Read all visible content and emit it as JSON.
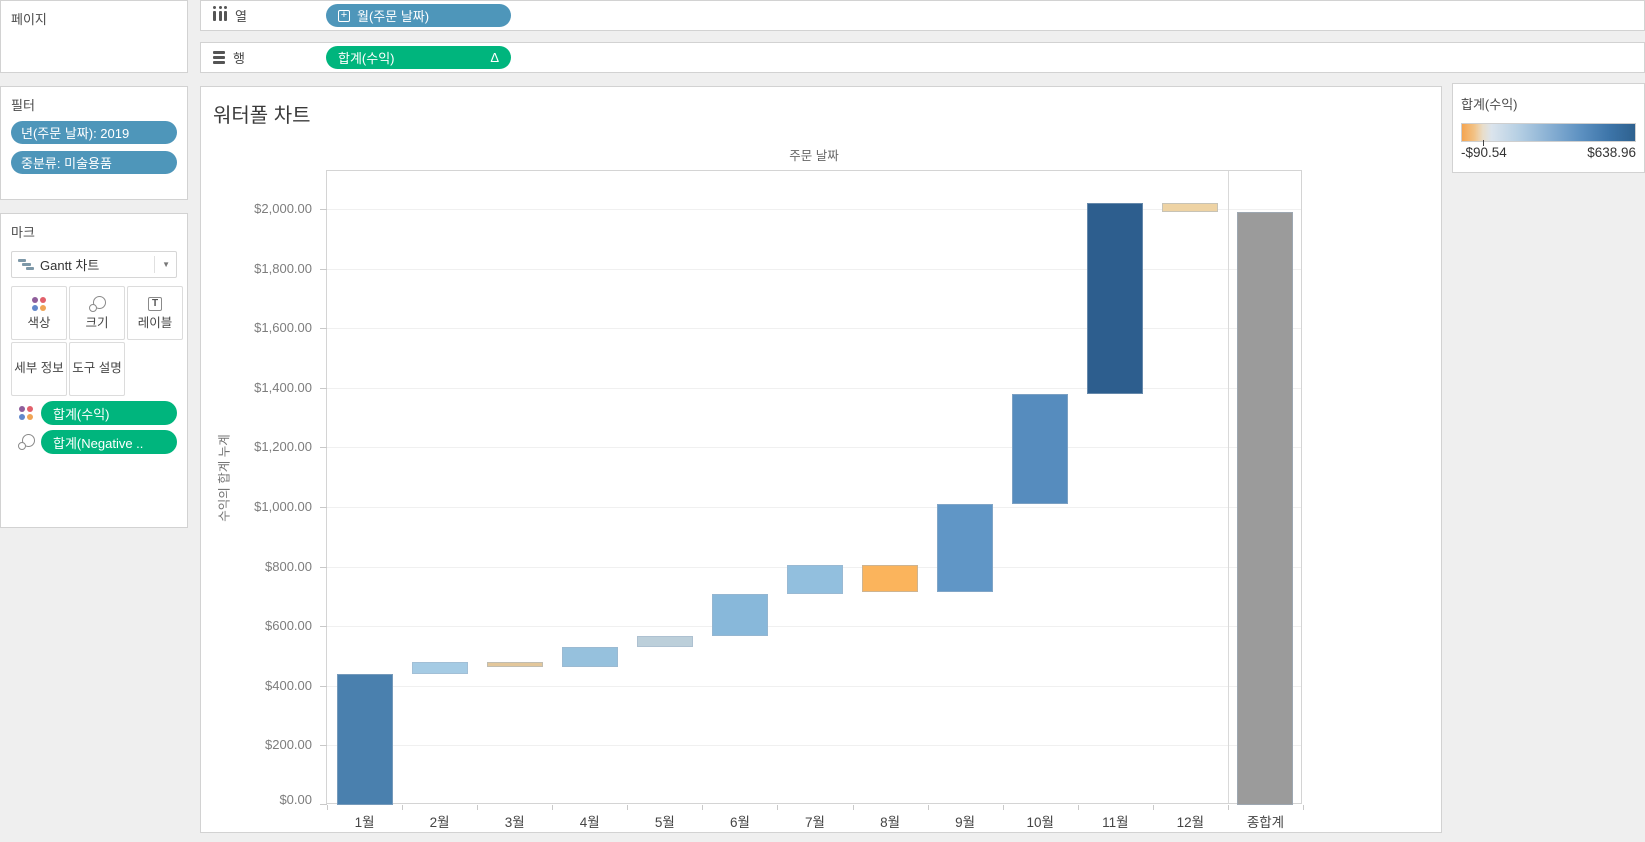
{
  "pages_card": {
    "title": "페이지"
  },
  "filters_card": {
    "title": "필터",
    "pills": [
      "년(주문 날짜): 2019",
      "중분류: 미술용품"
    ]
  },
  "marks_card": {
    "title": "마크",
    "mark_type_selector": "Gantt 차트",
    "buttons": [
      {
        "id": "color",
        "label": "색상"
      },
      {
        "id": "size",
        "label": "크기"
      },
      {
        "id": "label",
        "label": "레이블"
      },
      {
        "id": "detail",
        "label": "세부 정보"
      },
      {
        "id": "tooltip",
        "label": "도구 설명"
      }
    ],
    "pills": [
      {
        "icon": "color-dots-icon",
        "text": "합계(수익)"
      },
      {
        "icon": "size-circles-icon",
        "text": "합계(Negative .."
      }
    ]
  },
  "columns_shelf": {
    "label": "열",
    "pill": {
      "expand_icon": "+",
      "text": "월(주문 날짜)",
      "color": "#4e96ba"
    }
  },
  "rows_shelf": {
    "label": "행",
    "pill": {
      "text": "합계(수익)",
      "table_calc_badge": "Δ",
      "color": "#00b57d"
    }
  },
  "worksheet": {
    "title": "워터폴 차트",
    "column_field_header": "주문 날짜",
    "y_axis_title": "수익의 합계 누계"
  },
  "legend": {
    "title": "합계(수익)",
    "min_label": "-$90.54",
    "max_label": "$638.96",
    "zero_tick_percent": 12.4,
    "gradient_colors": [
      "#f5a44f",
      "#dbe4ed",
      "#2e618f"
    ]
  },
  "chart_data": {
    "type": "bar",
    "subtype": "waterfall-gantt",
    "title": "주문 날짜",
    "ylabel": "수익의 합계 누계",
    "ylim": [
      0,
      2130
    ],
    "grid": true,
    "legend_position": "top-right",
    "y_ticks": [
      {
        "value": 0,
        "label": "$0.00"
      },
      {
        "value": 200,
        "label": "$200.00"
      },
      {
        "value": 400,
        "label": "$400.00"
      },
      {
        "value": 600,
        "label": "$600.00"
      },
      {
        "value": 800,
        "label": "$800.00"
      },
      {
        "value": 1000,
        "label": "$1,000.00"
      },
      {
        "value": 1200,
        "label": "$1,200.00"
      },
      {
        "value": 1400,
        "label": "$1,400.00"
      },
      {
        "value": 1600,
        "label": "$1,600.00"
      },
      {
        "value": 1800,
        "label": "$1,800.00"
      },
      {
        "value": 2000,
        "label": "$2,000.00"
      }
    ],
    "categories": [
      "1월",
      "2월",
      "3월",
      "4월",
      "5월",
      "6월",
      "7월",
      "8월",
      "9월",
      "10월",
      "11월",
      "12월",
      "종합계"
    ],
    "bars": [
      {
        "category": "1월",
        "start": 0,
        "end": 438,
        "delta": 438,
        "color": "#4a80ae"
      },
      {
        "category": "2월",
        "start": 438,
        "end": 481,
        "delta": 43,
        "color": "#a5cbe4"
      },
      {
        "category": "3월",
        "start": 481,
        "end": 464,
        "delta": -17,
        "color": "#e3c79b"
      },
      {
        "category": "4월",
        "start": 464,
        "end": 531,
        "delta": 67,
        "color": "#96c1dd"
      },
      {
        "category": "5월",
        "start": 531,
        "end": 568,
        "delta": 37,
        "color": "#bccfda"
      },
      {
        "category": "6월",
        "start": 568,
        "end": 707,
        "delta": 139,
        "color": "#88b8da"
      },
      {
        "category": "7월",
        "start": 707,
        "end": 805,
        "delta": 98,
        "color": "#92bfde"
      },
      {
        "category": "8월",
        "start": 805,
        "end": 714.46,
        "delta": -90.54,
        "color": "#fbb45c"
      },
      {
        "category": "9월",
        "start": 714.46,
        "end": 1009.46,
        "delta": 295,
        "color": "#6096c6"
      },
      {
        "category": "10월",
        "start": 1009.46,
        "end": 1380.46,
        "delta": 371,
        "color": "#568cbe"
      },
      {
        "category": "11월",
        "start": 1380.46,
        "end": 2019.42,
        "delta": 638.96,
        "color": "#2d5e8e"
      },
      {
        "category": "12월",
        "start": 2019.42,
        "end": 1988.88,
        "delta": -30.54,
        "color": "#eed3a4"
      },
      {
        "category": "종합계",
        "start": 0,
        "end": 1988.88,
        "delta": 1988.88,
        "color": "#9b9b9b",
        "is_total": true
      }
    ],
    "color_legend": {
      "field": "합계(수익)",
      "min": -90.54,
      "max": 638.96
    }
  }
}
